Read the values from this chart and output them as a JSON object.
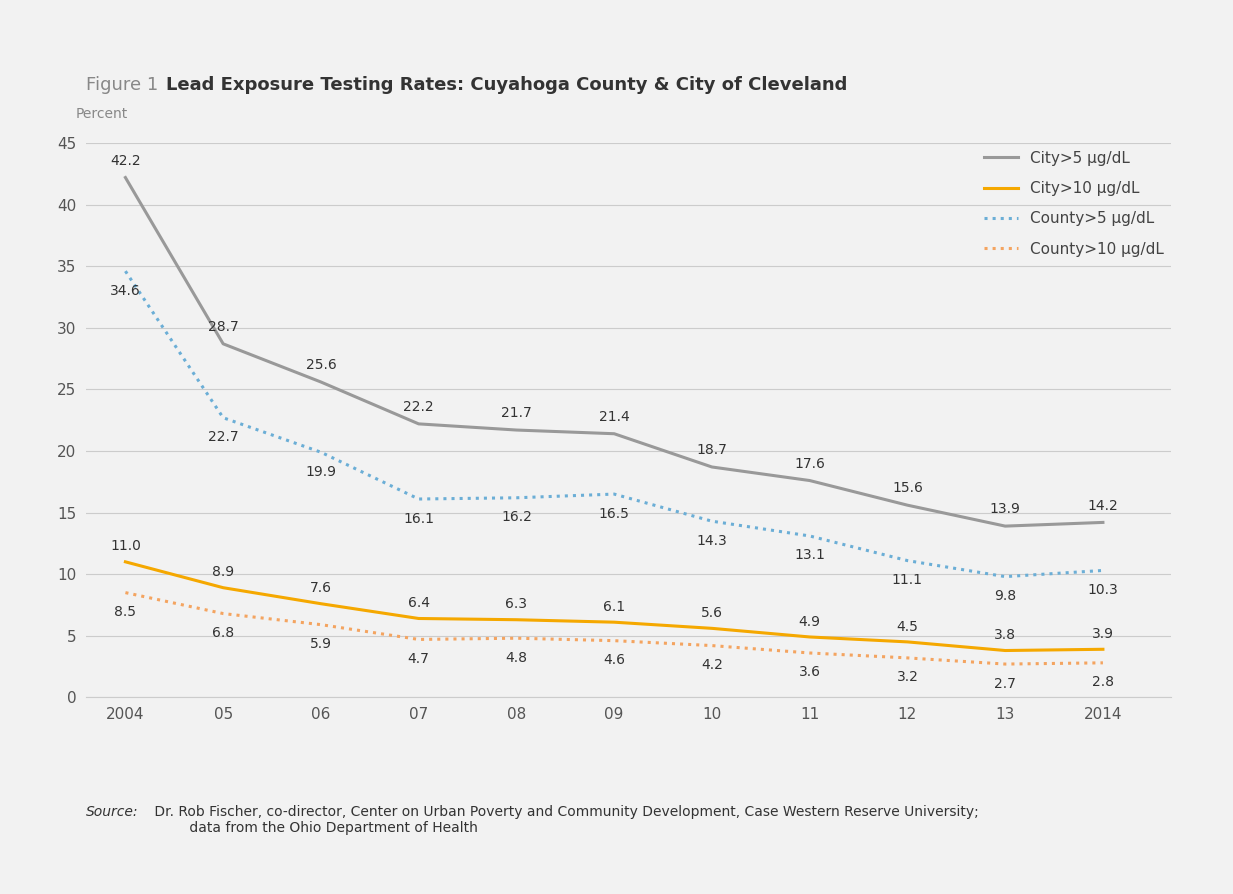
{
  "title_prefix": "Figure 1 ",
  "title_bold": "Lead Exposure Testing Rates: Cuyahoga County & City of Cleveland",
  "ylabel": "Percent",
  "source_italic": "Source:",
  "source_text": " Dr. Rob Fischer, co-director, Center on Urban Poverty and Community Development, Case Western Reserve University;\n         data from the Ohio Department of Health",
  "x_labels": [
    "2004",
    "05",
    "06",
    "07",
    "08",
    "09",
    "10",
    "11",
    "12",
    "13",
    "2014"
  ],
  "x_values": [
    2004,
    2005,
    2006,
    2007,
    2008,
    2009,
    2010,
    2011,
    2012,
    2013,
    2014
  ],
  "city_gt5": [
    42.2,
    28.7,
    25.6,
    22.2,
    21.7,
    21.4,
    18.7,
    17.6,
    15.6,
    13.9,
    14.2
  ],
  "city_gt10": [
    11.0,
    8.9,
    7.6,
    6.4,
    6.3,
    6.1,
    5.6,
    4.9,
    4.5,
    3.8,
    3.9
  ],
  "county_gt5": [
    34.6,
    22.7,
    19.9,
    16.1,
    16.2,
    16.5,
    14.3,
    13.1,
    11.1,
    9.8,
    10.3
  ],
  "county_gt10": [
    8.5,
    6.8,
    5.9,
    4.7,
    4.8,
    4.6,
    4.2,
    3.6,
    3.2,
    2.7,
    2.8
  ],
  "city_gt5_color": "#999999",
  "city_gt10_color": "#F5A800",
  "county_gt5_color": "#6BAED6",
  "county_gt10_color": "#F4A460",
  "background_color": "#F2F2F2",
  "ylim": [
    0,
    45
  ],
  "yticks": [
    0,
    5,
    10,
    15,
    20,
    25,
    30,
    35,
    40,
    45
  ],
  "legend_labels": [
    "City>5 μg/dL",
    "City>10 μg/dL",
    "County>5 μg/dL",
    "County>10 μg/dL"
  ],
  "annot_color": "#333333",
  "annot_fontsize": 10,
  "label_fontsize": 11,
  "title_fontsize": 13
}
